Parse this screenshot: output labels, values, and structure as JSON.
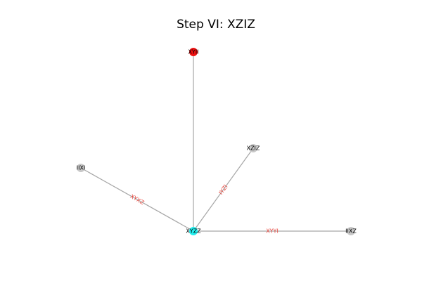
{
  "title": "Step VI: XZIZ",
  "colors": {
    "edge": "#a6a6a6",
    "edge_label": "#e8483f",
    "node_default": "#c8c8c8",
    "node_red": "#ee1111",
    "node_cyan": "#22eeee"
  },
  "nodes": [
    {
      "id": "XYII",
      "label": "XYII",
      "color": "node_red"
    },
    {
      "id": "XZIZ",
      "label": "XZIZ",
      "color": "node_default"
    },
    {
      "id": "IIXI",
      "label": "IIXI",
      "color": "node_default"
    },
    {
      "id": "XYZZ",
      "label": "XYZZ",
      "color": "node_cyan"
    },
    {
      "id": "IIXZ",
      "label": "IIXZ",
      "color": "node_default"
    }
  ],
  "edges": [
    {
      "source": "XYZZ",
      "target": "XYII",
      "label": ""
    },
    {
      "source": "XYZZ",
      "target": "XZIZ",
      "label": "IYZI"
    },
    {
      "source": "XYZZ",
      "target": "IIXI",
      "label": "XYXZ"
    },
    {
      "source": "XYZZ",
      "target": "IIXZ",
      "label": "XYYI"
    }
  ]
}
